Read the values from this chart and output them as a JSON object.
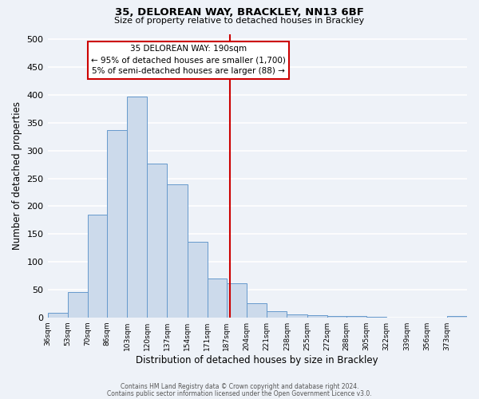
{
  "title": "35, DELOREAN WAY, BRACKLEY, NN13 6BF",
  "subtitle": "Size of property relative to detached houses in Brackley",
  "xlabel": "Distribution of detached houses by size in Brackley",
  "ylabel": "Number of detached properties",
  "bar_color": "#ccdaeb",
  "bar_edge_color": "#6699cc",
  "background_color": "#eef2f8",
  "grid_color": "#ffffff",
  "bin_labels": [
    "36sqm",
    "53sqm",
    "70sqm",
    "86sqm",
    "103sqm",
    "120sqm",
    "137sqm",
    "154sqm",
    "171sqm",
    "187sqm",
    "204sqm",
    "221sqm",
    "238sqm",
    "255sqm",
    "272sqm",
    "288sqm",
    "305sqm",
    "322sqm",
    "339sqm",
    "356sqm",
    "373sqm"
  ],
  "bin_edges": [
    36,
    53,
    70,
    86,
    103,
    120,
    137,
    154,
    171,
    187,
    204,
    221,
    238,
    255,
    272,
    288,
    305,
    322,
    339,
    356,
    373,
    390
  ],
  "bin_values": [
    8,
    46,
    185,
    337,
    398,
    277,
    240,
    136,
    70,
    62,
    25,
    11,
    6,
    4,
    2,
    2,
    1,
    0,
    0,
    0,
    3
  ],
  "vline_x": 190,
  "vline_color": "#cc0000",
  "annotation_title": "35 DELOREAN WAY: 190sqm",
  "annotation_line1": "← 95% of detached houses are smaller (1,700)",
  "annotation_line2": "5% of semi-detached houses are larger (88) →",
  "annotation_box_color": "#cc0000",
  "ylim": [
    0,
    510
  ],
  "yticks": [
    0,
    50,
    100,
    150,
    200,
    250,
    300,
    350,
    400,
    450,
    500
  ],
  "footnote1": "Contains HM Land Registry data © Crown copyright and database right 2024.",
  "footnote2": "Contains public sector information licensed under the Open Government Licence v3.0."
}
